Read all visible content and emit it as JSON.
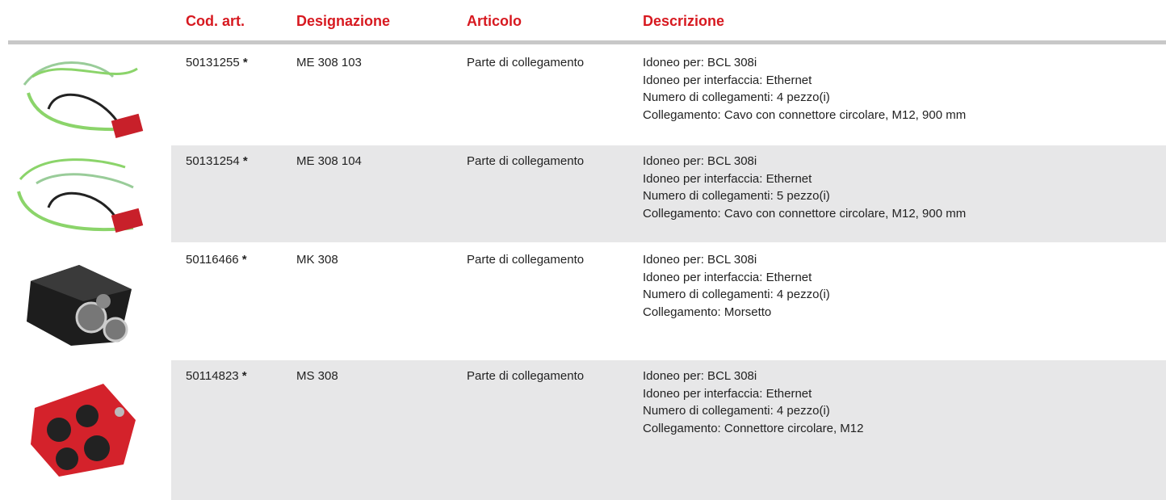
{
  "table": {
    "header": [
      "Cod. art.",
      "Designazione",
      "Articolo",
      "Descrizione"
    ],
    "rows": [
      {
        "code": "50131255",
        "mark": "*",
        "designation": "ME 308 103",
        "article": "Parte di collegamento",
        "description": [
          "Idoneo per: BCL 308i",
          "Idoneo per interfaccia: Ethernet",
          "Numero di collegamenti: 4 pezzo(i)",
          "Collegamento: Cavo con connettore circolare, M12, 900 mm"
        ]
      },
      {
        "code": "50131254",
        "mark": "*",
        "designation": "ME 308 104",
        "article": "Parte di collegamento",
        "description": [
          "Idoneo per: BCL 308i",
          "Idoneo per interfaccia: Ethernet",
          "Numero di collegamenti: 5 pezzo(i)",
          "Collegamento: Cavo con connettore circolare, M12, 900 mm"
        ]
      },
      {
        "code": "50116466",
        "mark": "*",
        "designation": "MK 308",
        "article": "Parte di collegamento",
        "description": [
          "Idoneo per: BCL 308i",
          "Idoneo per interfaccia: Ethernet",
          "Numero di collegamenti: 4 pezzo(i)",
          "Collegamento: Morsetto"
        ]
      },
      {
        "code": "50114823",
        "mark": "*",
        "designation": "MS 308",
        "article": "Parte di collegamento",
        "description": [
          "Idoneo per: BCL 308i",
          "Idoneo per interfaccia: Ethernet",
          "Numero di collegamenti: 4 pezzo(i)",
          "Collegamento: Connettore circolare, M12"
        ]
      }
    ]
  }
}
